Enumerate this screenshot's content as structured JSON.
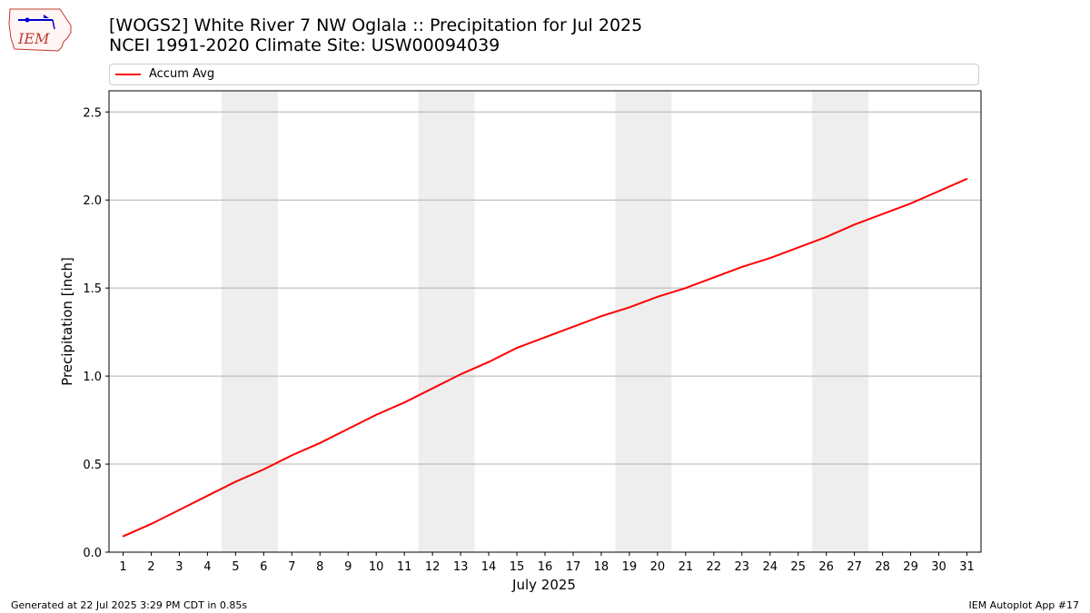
{
  "header": {
    "title_line1": "[WOGS2] White River 7 NW Oglala :: Precipitation for Jul 2025",
    "title_line2": "NCEI 1991-2020 Climate Site: USW00094039",
    "logo_text": "IEM"
  },
  "footer": {
    "left": "Generated at 22 Jul 2025 3:29 PM CDT in 0.85s",
    "right": "IEM Autoplot App #17"
  },
  "colors": {
    "series": "#ff0000",
    "weekend_band": "#eeeeee",
    "grid": "#b0b0b0"
  },
  "chart_data": {
    "type": "line",
    "xlabel": "July 2025",
    "ylabel": "Precipitation [inch]",
    "xlim": [
      0.5,
      31.5
    ],
    "ylim": [
      0.0,
      2.62
    ],
    "yticks": [
      0.0,
      0.5,
      1.0,
      1.5,
      2.0,
      2.5
    ],
    "ytick_labels": [
      "0.0",
      "0.5",
      "1.0",
      "1.5",
      "2.0",
      "2.5"
    ],
    "x": [
      1,
      2,
      3,
      4,
      5,
      6,
      7,
      8,
      9,
      10,
      11,
      12,
      13,
      14,
      15,
      16,
      17,
      18,
      19,
      20,
      21,
      22,
      23,
      24,
      25,
      26,
      27,
      28,
      29,
      30,
      31
    ],
    "xtick_labels": [
      "1",
      "2",
      "3",
      "4",
      "5",
      "6",
      "7",
      "8",
      "9",
      "10",
      "11",
      "12",
      "13",
      "14",
      "15",
      "16",
      "17",
      "18",
      "19",
      "20",
      "21",
      "22",
      "23",
      "24",
      "25",
      "26",
      "27",
      "28",
      "29",
      "30",
      "31"
    ],
    "grid": "horizontal",
    "legend_position": "top",
    "weekend_bands": [
      [
        4.5,
        6.5
      ],
      [
        11.5,
        13.5
      ],
      [
        18.5,
        20.5
      ],
      [
        25.5,
        27.5
      ]
    ],
    "series": [
      {
        "name": "Accum Avg",
        "values": [
          0.09,
          0.16,
          0.24,
          0.32,
          0.4,
          0.47,
          0.55,
          0.62,
          0.7,
          0.78,
          0.85,
          0.93,
          1.01,
          1.08,
          1.16,
          1.22,
          1.28,
          1.34,
          1.39,
          1.45,
          1.5,
          1.56,
          1.62,
          1.67,
          1.73,
          1.79,
          1.86,
          1.92,
          1.98,
          2.05,
          2.12
        ]
      }
    ]
  }
}
